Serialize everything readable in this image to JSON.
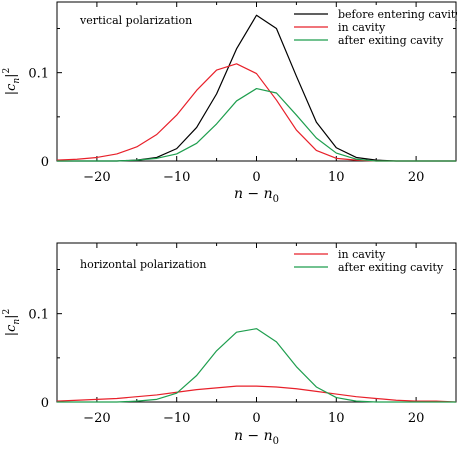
{
  "chart_data": [
    {
      "type": "line",
      "annotation": "vertical polarization",
      "xlabel": "n − n",
      "xlabel_sub": "0",
      "ylabel": "|c",
      "ylabel_sub": "n",
      "ylabel_end": "|",
      "ylabel_sup": "2",
      "xlim": [
        -25,
        25
      ],
      "ylim": [
        0,
        0.18
      ],
      "x_ticks": [
        {
          "value": -20,
          "label": "−20"
        },
        {
          "value": -10,
          "label": "−10"
        },
        {
          "value": 0,
          "label": "0"
        },
        {
          "value": 10,
          "label": "10"
        },
        {
          "value": 20,
          "label": "20"
        }
      ],
      "y_ticks": [
        {
          "value": 0,
          "label": "0"
        },
        {
          "value": 0.1,
          "label": "0.1"
        }
      ],
      "legend_position": "top-right",
      "x": [
        -25,
        -22.5,
        -20,
        -17.5,
        -15,
        -12.5,
        -10,
        -7.5,
        -5,
        -2.5,
        0,
        2.5,
        5,
        7.5,
        10,
        12.5,
        15,
        17.5,
        20,
        22.5,
        25
      ],
      "series": [
        {
          "name": "before entering cavity",
          "color": "#000000",
          "values": [
            0.0,
            0.0,
            0.0,
            0.0,
            0.001,
            0.004,
            0.014,
            0.038,
            0.076,
            0.127,
            0.165,
            0.15,
            0.096,
            0.044,
            0.015,
            0.004,
            0.001,
            0.0,
            0.0,
            0.0,
            0.0
          ]
        },
        {
          "name": "in cavity",
          "color": "#e8202a",
          "values": [
            0.001,
            0.002,
            0.004,
            0.008,
            0.016,
            0.03,
            0.052,
            0.08,
            0.103,
            0.11,
            0.099,
            0.069,
            0.035,
            0.012,
            0.003,
            0.001,
            0.0,
            0.0,
            0.0,
            0.0,
            0.0
          ]
        },
        {
          "name": "after exiting cavity",
          "color": "#1e9e4e",
          "values": [
            0.0,
            0.0,
            0.0,
            0.0,
            0.001,
            0.003,
            0.008,
            0.02,
            0.042,
            0.068,
            0.082,
            0.077,
            0.052,
            0.026,
            0.009,
            0.002,
            0.0,
            0.0,
            0.0,
            0.0,
            0.0
          ]
        }
      ]
    },
    {
      "type": "line",
      "annotation": "horizontal polarization",
      "xlabel": "n − n",
      "xlabel_sub": "0",
      "ylabel": "|c",
      "ylabel_sub": "n",
      "ylabel_end": "|",
      "ylabel_sup": "2",
      "xlim": [
        -25,
        25
      ],
      "ylim": [
        0,
        0.18
      ],
      "x_ticks": [
        {
          "value": -20,
          "label": "−20"
        },
        {
          "value": -10,
          "label": "−10"
        },
        {
          "value": 0,
          "label": "0"
        },
        {
          "value": 10,
          "label": "10"
        },
        {
          "value": 20,
          "label": "20"
        }
      ],
      "y_ticks": [
        {
          "value": 0,
          "label": "0"
        },
        {
          "value": 0.1,
          "label": "0.1"
        }
      ],
      "legend_position": "top-right",
      "x": [
        -25,
        -22.5,
        -20,
        -17.5,
        -15,
        -12.5,
        -10,
        -7.5,
        -5,
        -2.5,
        0,
        2.5,
        5,
        7.5,
        10,
        12.5,
        15,
        17.5,
        20,
        22.5,
        25
      ],
      "series": [
        {
          "name": "in cavity",
          "color": "#e8202a",
          "values": [
            0.001,
            0.002,
            0.003,
            0.004,
            0.006,
            0.008,
            0.011,
            0.014,
            0.016,
            0.018,
            0.018,
            0.017,
            0.015,
            0.012,
            0.009,
            0.006,
            0.004,
            0.002,
            0.001,
            0.001,
            0.0
          ]
        },
        {
          "name": "after exiting cavity",
          "color": "#1e9e4e",
          "values": [
            0.0,
            0.0,
            0.0,
            0.0,
            0.001,
            0.003,
            0.01,
            0.03,
            0.058,
            0.079,
            0.083,
            0.068,
            0.04,
            0.017,
            0.005,
            0.001,
            0.0,
            0.0,
            0.0,
            0.0,
            0.0
          ]
        }
      ]
    }
  ]
}
